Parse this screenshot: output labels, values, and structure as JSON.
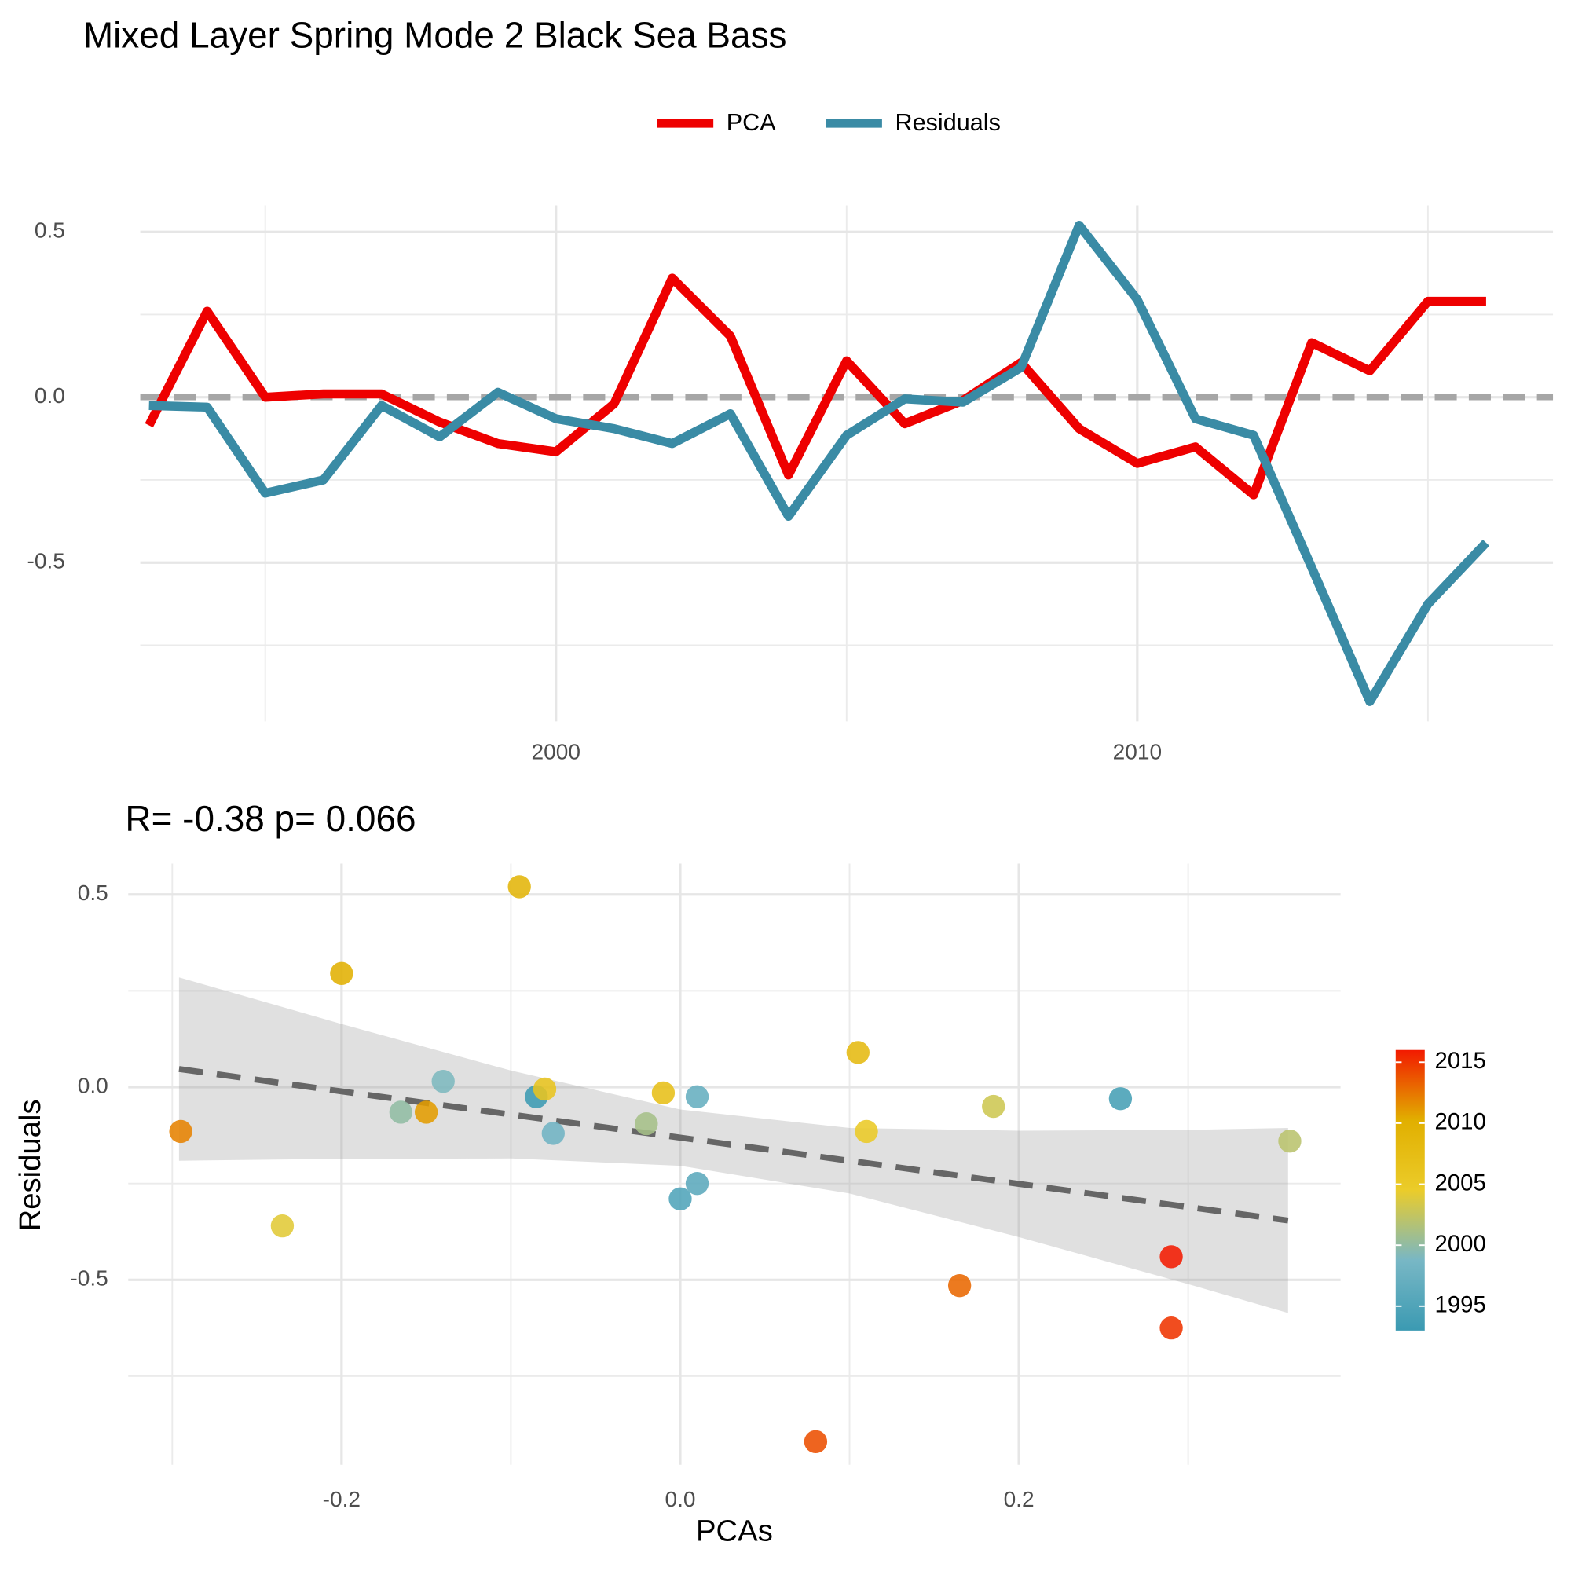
{
  "chart_data": [
    {
      "type": "line",
      "title": "Mixed Layer Spring Mode 2 Black Sea Bass",
      "x": [
        1993,
        1994,
        1995,
        1996,
        1997,
        1998,
        1999,
        2000,
        2001,
        2002,
        2003,
        2004,
        2005,
        2006,
        2007,
        2008,
        2009,
        2010,
        2011,
        2012,
        2013,
        2014,
        2015,
        2016
      ],
      "series": [
        {
          "name": "PCA",
          "color": "#EE0000",
          "values": [
            -0.085,
            0.26,
            0.0,
            0.01,
            0.01,
            -0.075,
            -0.14,
            -0.165,
            -0.02,
            0.36,
            0.185,
            -0.235,
            0.11,
            -0.08,
            -0.01,
            0.105,
            -0.095,
            -0.2,
            -0.15,
            -0.295,
            0.165,
            0.08,
            0.29,
            0.29
          ]
        },
        {
          "name": "Residuals",
          "color": "#3A8BA5",
          "values": [
            -0.025,
            -0.03,
            -0.29,
            -0.25,
            -0.025,
            -0.12,
            0.015,
            -0.065,
            -0.095,
            -0.14,
            -0.05,
            -0.36,
            -0.115,
            -0.005,
            -0.015,
            0.09,
            0.52,
            0.295,
            -0.065,
            -0.115,
            -0.515,
            -0.92,
            -0.625,
            -0.44
          ]
        }
      ],
      "xlim": [
        1992.85,
        2017.15
      ],
      "xticks": [
        2000,
        2010
      ],
      "x_minor_ticks": [
        1995,
        2005,
        2015
      ],
      "ylim": [
        -0.98,
        0.58
      ],
      "yticks": [
        -0.5,
        {
          "value": 0,
          "label": "0.0"
        },
        0.5
      ],
      "y_minor_ticks": [
        -0.75,
        -0.25,
        0.25
      ],
      "hline": 0,
      "grid": true,
      "legend": "top"
    },
    {
      "type": "scatter",
      "title": "R= -0.38  p= 0.066",
      "x_label": "PCAs",
      "y_label": "Residuals",
      "x": [
        -0.085,
        0.26,
        0.0,
        0.01,
        0.01,
        -0.075,
        -0.14,
        -0.165,
        -0.02,
        0.36,
        0.185,
        -0.235,
        0.11,
        -0.08,
        -0.01,
        0.105,
        -0.095,
        -0.2,
        -0.15,
        -0.295,
        0.165,
        0.08,
        0.29,
        0.29
      ],
      "values": [
        -0.025,
        -0.03,
        -0.29,
        -0.25,
        -0.025,
        -0.12,
        0.015,
        -0.065,
        -0.095,
        -0.14,
        -0.05,
        -0.36,
        -0.115,
        -0.005,
        -0.015,
        0.09,
        0.52,
        0.295,
        -0.065,
        -0.115,
        -0.515,
        -0.92,
        -0.625,
        -0.44
      ],
      "color_values": [
        1993,
        1994,
        1995,
        1996,
        1997,
        1998,
        1999,
        2000,
        2001,
        2002,
        2003,
        2004,
        2005,
        2006,
        2007,
        2008,
        2009,
        2010,
        2011,
        2012,
        2013,
        2014,
        2015,
        2016
      ],
      "colors": [
        "#3B9AB2",
        "#78B7C5",
        "#EBCC2A",
        "#E1AF00",
        "#F21A00"
      ],
      "color_limits": [
        1993,
        2016
      ],
      "colorbar_ticks": [
        1995,
        2000,
        2005,
        2010,
        2015
      ],
      "fit": {
        "x": [
          -0.296,
          -0.2,
          -0.1,
          0,
          0.1,
          0.2,
          0.3,
          0.359
        ],
        "values": [
          0.047,
          -0.011,
          -0.071,
          -0.131,
          -0.191,
          -0.251,
          -0.311,
          -0.346
        ],
        "lower": [
          -0.191,
          -0.186,
          -0.185,
          -0.204,
          -0.276,
          -0.389,
          -0.511,
          -0.586
        ],
        "upper": [
          0.285,
          0.164,
          0.043,
          -0.058,
          -0.106,
          -0.113,
          -0.111,
          -0.106
        ]
      },
      "xlim": [
        -0.326,
        0.39
      ],
      "xticks": [
        -0.2,
        {
          "value": 0,
          "label": "0.0"
        },
        0.2
      ],
      "x_minor_ticks": [
        -0.3,
        -0.1,
        0.1,
        0.3
      ],
      "ylim": [
        -0.98,
        0.58
      ],
      "yticks": [
        -0.5,
        {
          "value": 0,
          "label": "0.0"
        },
        0.5
      ],
      "y_minor_ticks": [
        -0.75,
        -0.25,
        0.25
      ],
      "grid": true
    }
  ]
}
